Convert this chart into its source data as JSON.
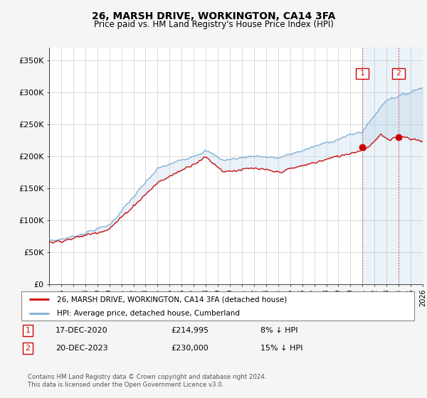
{
  "title": "26, MARSH DRIVE, WORKINGTON, CA14 3FA",
  "subtitle": "Price paid vs. HM Land Registry's House Price Index (HPI)",
  "ylabel_ticks": [
    "£0",
    "£50K",
    "£100K",
    "£150K",
    "£200K",
    "£250K",
    "£300K",
    "£350K"
  ],
  "ytick_values": [
    0,
    50000,
    100000,
    150000,
    200000,
    250000,
    300000,
    350000
  ],
  "ylim": [
    0,
    370000
  ],
  "hpi_color": "#7bafd4",
  "price_color": "#cc0000",
  "fill_color": "#c5d9ee",
  "marker1_year": 2021.0,
  "marker2_year": 2024.0,
  "marker1_value": 214995,
  "marker2_value": 230000,
  "legend_entries": [
    "26, MARSH DRIVE, WORKINGTON, CA14 3FA (detached house)",
    "HPI: Average price, detached house, Cumberland"
  ],
  "copyright": "Contains HM Land Registry data © Crown copyright and database right 2024.\nThis data is licensed under the Open Government Licence v3.0.",
  "background_color": "#f5f5f5",
  "plot_bg_color": "#ffffff",
  "grid_color": "#cccccc"
}
